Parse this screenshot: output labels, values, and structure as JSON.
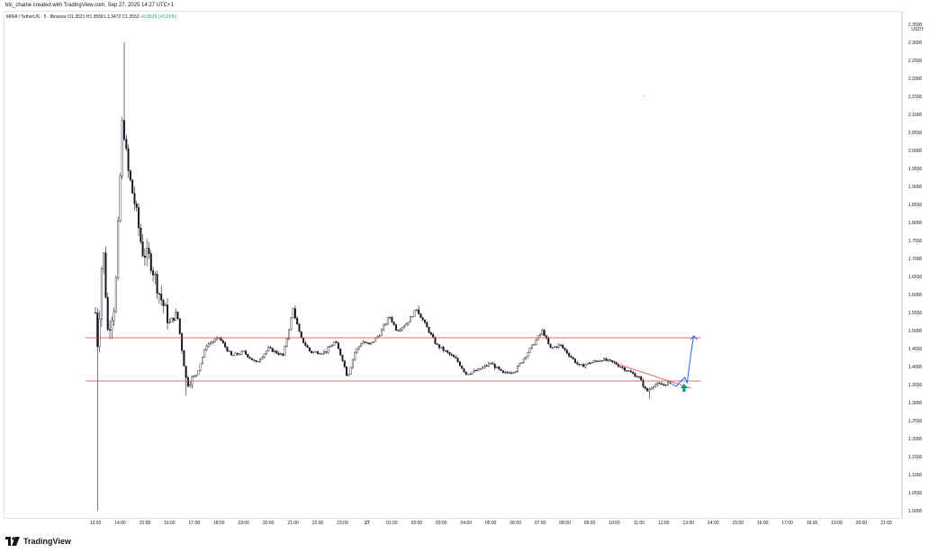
{
  "header": {
    "attribution": "btc_charlie created with TradingView.com, Sep 27, 2025 14:27 UTC+1"
  },
  "symbol": {
    "name": "MIRA / TetherUS · 5 · Binance",
    "open": "O1.3521",
    "high": "H1.3558",
    "low": "L1.3472",
    "close": "C1.3553",
    "change": "+0.0029 (+0.21%)"
  },
  "axis": {
    "currency": "USDT",
    "price_labels": [
      "2.3500",
      "2.3000",
      "2.2500",
      "2.2000",
      "2.1500",
      "2.1000",
      "2.0500",
      "2.0000",
      "1.9500",
      "1.9000",
      "1.8500",
      "1.8000",
      "1.7500",
      "1.7000",
      "1.6500",
      "1.6000",
      "1.5500",
      "1.5000",
      "1.4500",
      "1.4000",
      "1.3500",
      "1.3000",
      "1.2500",
      "1.2000",
      "1.1500",
      "1.1000",
      "1.0500",
      "1.0000"
    ],
    "time_labels": [
      "13:00",
      "14:00",
      "15:00",
      "16:00",
      "17:00",
      "18:00",
      "19:00",
      "20:00",
      "21:00",
      "22:00",
      "23:00",
      "27",
      "01:00",
      "02:00",
      "03:00",
      "04:00",
      "05:00",
      "06:00",
      "07:00",
      "08:00",
      "09:00",
      "10:00",
      "11:00",
      "12:00",
      "13:00",
      "14:00",
      "15:00",
      "16:00",
      "17:00",
      "18:00",
      "19:00",
      "20:00",
      "21:00"
    ],
    "bold_time_label": "27"
  },
  "drawings": {
    "resistance_level": 1.48,
    "support_level": 1.36,
    "trendline_color": "#f23645",
    "level_color": "#f23645",
    "projection_color": "#2962ff",
    "marker_color": "#089981",
    "marker_icon": "arrow-up-icon"
  },
  "chart_data": {
    "type": "candlestick",
    "x_range": [
      "13:00",
      "21:00"
    ],
    "ylim": [
      0.98,
      2.36
    ],
    "anchors": [
      {
        "t": 0,
        "p": 1.55
      },
      {
        "t": 0.1,
        "p": 1.45
      },
      {
        "t": 0.3,
        "p": 1.75
      },
      {
        "t": 0.5,
        "p": 1.5
      },
      {
        "t": 0.8,
        "p": 1.58
      },
      {
        "t": 1.1,
        "p": 2.1
      },
      {
        "t": 1.3,
        "p": 1.95
      },
      {
        "t": 1.6,
        "p": 1.85
      },
      {
        "t": 1.9,
        "p": 1.72
      },
      {
        "t": 2.2,
        "p": 1.7
      },
      {
        "t": 2.6,
        "p": 1.6
      },
      {
        "t": 3.0,
        "p": 1.52
      },
      {
        "t": 3.3,
        "p": 1.55
      },
      {
        "t": 3.7,
        "p": 1.35
      },
      {
        "t": 4.1,
        "p": 1.38
      },
      {
        "t": 4.5,
        "p": 1.46
      },
      {
        "t": 5.0,
        "p": 1.48
      },
      {
        "t": 5.5,
        "p": 1.43
      },
      {
        "t": 6.0,
        "p": 1.44
      },
      {
        "t": 6.5,
        "p": 1.41
      },
      {
        "t": 7.0,
        "p": 1.45
      },
      {
        "t": 7.6,
        "p": 1.43
      },
      {
        "t": 8.0,
        "p": 1.56
      },
      {
        "t": 8.3,
        "p": 1.48
      },
      {
        "t": 8.7,
        "p": 1.44
      },
      {
        "t": 9.3,
        "p": 1.44
      },
      {
        "t": 9.7,
        "p": 1.47
      },
      {
        "t": 10.0,
        "p": 1.42
      },
      {
        "t": 10.2,
        "p": 1.37
      },
      {
        "t": 10.5,
        "p": 1.44
      },
      {
        "t": 10.8,
        "p": 1.47
      },
      {
        "t": 11.1,
        "p": 1.46
      },
      {
        "t": 11.5,
        "p": 1.49
      },
      {
        "t": 11.9,
        "p": 1.54
      },
      {
        "t": 12.2,
        "p": 1.5
      },
      {
        "t": 12.6,
        "p": 1.52
      },
      {
        "t": 13.0,
        "p": 1.56
      },
      {
        "t": 13.4,
        "p": 1.51
      },
      {
        "t": 13.8,
        "p": 1.46
      },
      {
        "t": 14.2,
        "p": 1.44
      },
      {
        "t": 14.6,
        "p": 1.42
      },
      {
        "t": 15.0,
        "p": 1.38
      },
      {
        "t": 15.5,
        "p": 1.39
      },
      {
        "t": 16.0,
        "p": 1.41
      },
      {
        "t": 16.5,
        "p": 1.38
      },
      {
        "t": 17.0,
        "p": 1.39
      },
      {
        "t": 17.4,
        "p": 1.43
      },
      {
        "t": 17.8,
        "p": 1.47
      },
      {
        "t": 18.1,
        "p": 1.5
      },
      {
        "t": 18.4,
        "p": 1.45
      },
      {
        "t": 18.8,
        "p": 1.46
      },
      {
        "t": 19.2,
        "p": 1.43
      },
      {
        "t": 19.6,
        "p": 1.4
      },
      {
        "t": 20.0,
        "p": 1.41
      },
      {
        "t": 20.5,
        "p": 1.42
      },
      {
        "t": 21.0,
        "p": 1.41
      },
      {
        "t": 21.5,
        "p": 1.39
      },
      {
        "t": 22.0,
        "p": 1.37
      },
      {
        "t": 22.3,
        "p": 1.33
      },
      {
        "t": 22.6,
        "p": 1.35
      },
      {
        "t": 23.0,
        "p": 1.35
      },
      {
        "t": 23.3,
        "p": 1.355
      }
    ],
    "spikes": [
      {
        "t": 0.05,
        "low": 1.0
      },
      {
        "t": 1.15,
        "high": 2.3
      },
      {
        "t": 3.65,
        "low": 1.32
      },
      {
        "t": 8.05,
        "high": 1.57
      },
      {
        "t": 13.05,
        "high": 1.57
      },
      {
        "t": 22.4,
        "low": 1.31
      }
    ],
    "trendline": {
      "t1": 21.0,
      "p1": 1.41,
      "t2": 24.1,
      "p2": 1.34
    },
    "resistance_line": {
      "t_start": -0.4,
      "t_end": 24.5,
      "p": 1.48
    },
    "support_line": {
      "t_start": -0.4,
      "t_end": 24.5,
      "p": 1.36
    },
    "projection": [
      {
        "t": 23.25,
        "p": 1.355
      },
      {
        "t": 23.5,
        "p": 1.345
      },
      {
        "t": 23.7,
        "p": 1.36
      },
      {
        "t": 23.85,
        "p": 1.37
      },
      {
        "t": 23.95,
        "p": 1.355
      },
      {
        "t": 24.05,
        "p": 1.41
      },
      {
        "t": 24.15,
        "p": 1.46
      },
      {
        "t": 24.22,
        "p": 1.485
      }
    ],
    "marker": {
      "t": 23.82,
      "p": 1.34
    }
  }
}
